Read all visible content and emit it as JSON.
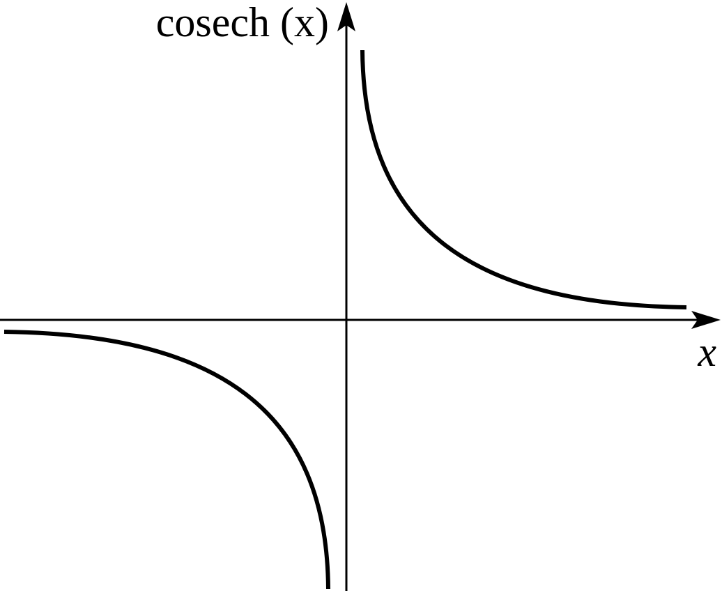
{
  "axes": {
    "y_label": "cosech (x)",
    "x_label": "x"
  }
}
